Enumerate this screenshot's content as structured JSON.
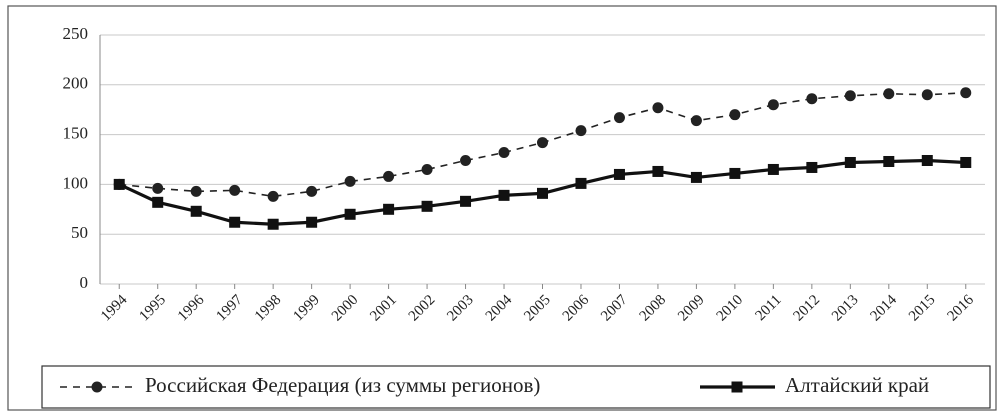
{
  "chart_data": {
    "type": "line",
    "categories": [
      "1994",
      "1995",
      "1996",
      "1997",
      "1998",
      "1999",
      "2000",
      "2001",
      "2002",
      "2003",
      "2004",
      "2005",
      "2006",
      "2007",
      "2008",
      "2009",
      "2010",
      "2011",
      "2012",
      "2013",
      "2014",
      "2015",
      "2016"
    ],
    "series": [
      {
        "name": "Российская Федерация (из суммы регионов)",
        "color": "#222222",
        "dash": true,
        "marker": "circle",
        "values": [
          100,
          96,
          93,
          94,
          88,
          93,
          103,
          108,
          115,
          124,
          132,
          142,
          154,
          167,
          177,
          164,
          170,
          180,
          186,
          189,
          191,
          190,
          192
        ]
      },
      {
        "name": "Алтайский край",
        "color": "#111111",
        "dash": false,
        "marker": "square",
        "values": [
          100,
          82,
          73,
          62,
          60,
          62,
          70,
          75,
          78,
          83,
          89,
          91,
          101,
          110,
          113,
          107,
          111,
          115,
          117,
          122,
          123,
          124,
          122
        ]
      }
    ],
    "ylim": [
      0,
      250
    ],
    "yticks": [
      0,
      50,
      100,
      150,
      200,
      250
    ],
    "grid": true,
    "legend": "bottom"
  }
}
